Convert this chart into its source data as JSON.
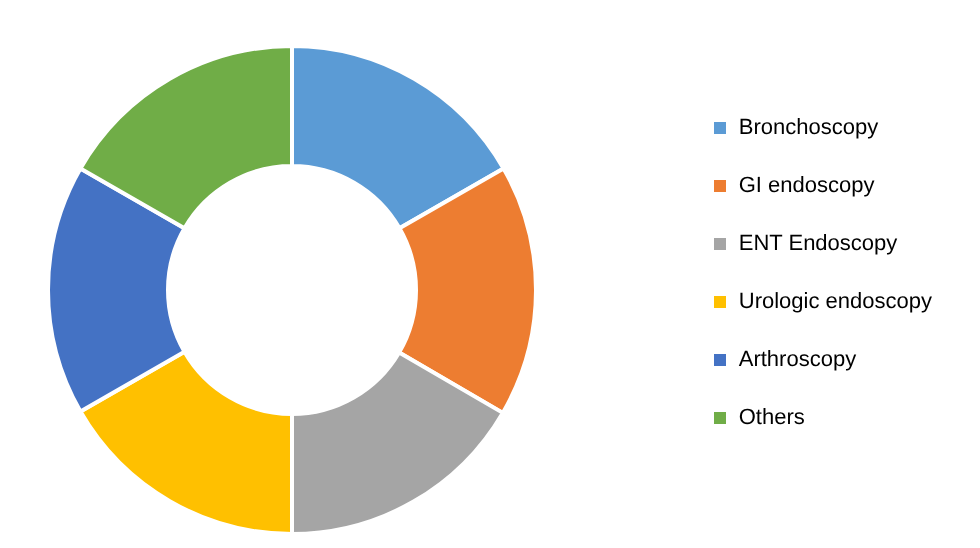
{
  "chart_data": {
    "type": "donut",
    "categories": [
      "Bronchoscopy",
      "GI endoscopy",
      "ENT Endoscopy",
      "Urologic endoscopy",
      "Arthroscopy",
      "Others"
    ],
    "values": [
      16.7,
      16.7,
      16.6,
      16.7,
      16.6,
      16.7
    ],
    "colors": [
      "#5b9bd5",
      "#ed7d31",
      "#a5a5a5",
      "#ffc000",
      "#4472c4",
      "#70ad47"
    ],
    "legend": "right"
  }
}
